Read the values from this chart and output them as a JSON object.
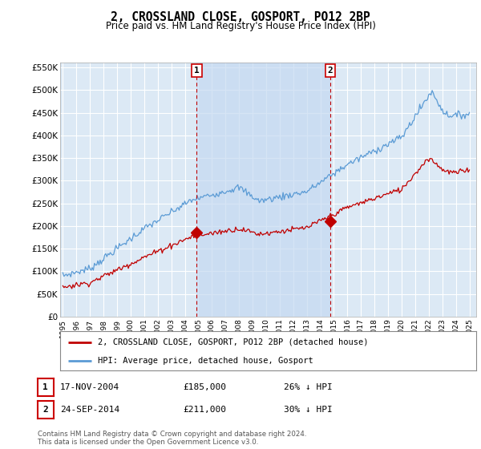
{
  "title": "2, CROSSLAND CLOSE, GOSPORT, PO12 2BP",
  "subtitle": "Price paid vs. HM Land Registry's House Price Index (HPI)",
  "legend_line1": "2, CROSSLAND CLOSE, GOSPORT, PO12 2BP (detached house)",
  "legend_line2": "HPI: Average price, detached house, Gosport",
  "footnote": "Contains HM Land Registry data © Crown copyright and database right 2024.\nThis data is licensed under the Open Government Licence v3.0.",
  "table_rows": [
    {
      "num": "1",
      "date": "17-NOV-2004",
      "price": "£185,000",
      "hpi": "26% ↓ HPI"
    },
    {
      "num": "2",
      "date": "24-SEP-2014",
      "price": "£211,000",
      "hpi": "30% ↓ HPI"
    }
  ],
  "vline1_x": 2004.88,
  "vline2_x": 2014.73,
  "ylim": [
    0,
    560000
  ],
  "xlim_start": 1994.8,
  "xlim_end": 2025.5,
  "yticks": [
    0,
    50000,
    100000,
    150000,
    200000,
    250000,
    300000,
    350000,
    400000,
    450000,
    500000,
    550000
  ],
  "ytick_labels": [
    "£0",
    "£50K",
    "£100K",
    "£150K",
    "£200K",
    "£250K",
    "£300K",
    "£350K",
    "£400K",
    "£450K",
    "£500K",
    "£550K"
  ],
  "hpi_color": "#5b9bd5",
  "price_color": "#c00000",
  "vline_color": "#c00000",
  "bg_color": "#dce9f5",
  "shade_color": "#c5d9f1",
  "grid_color": "#ffffff",
  "sale1_marker_x": 2004.88,
  "sale1_marker_y": 185000,
  "sale2_marker_x": 2014.73,
  "sale2_marker_y": 211000
}
